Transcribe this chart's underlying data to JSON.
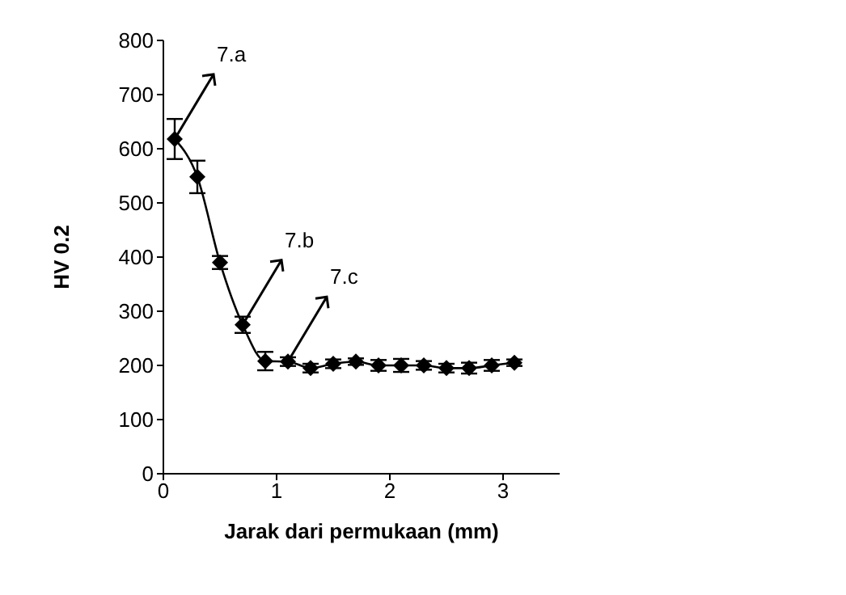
{
  "chart_data": {
    "type": "line",
    "xlabel": "Jarak dari permukaan (mm)",
    "ylabel": "HV 0.2",
    "x": [
      0.1,
      0.3,
      0.5,
      0.7,
      0.9,
      1.1,
      1.3,
      1.5,
      1.7,
      1.9,
      2.1,
      2.3,
      2.5,
      2.7,
      2.9,
      3.1
    ],
    "series": [
      {
        "color": "#000000",
        "values": [
          618,
          548,
          390,
          275,
          208,
          207,
          195,
          203,
          207,
          200,
          200,
          200,
          195,
          195,
          200,
          205
        ],
        "errors": [
          37,
          30,
          12,
          15,
          17,
          8,
          8,
          8,
          6,
          10,
          12,
          8,
          8,
          10,
          10,
          6
        ]
      }
    ],
    "annotations": [
      {
        "text": "7.a",
        "x": 0.1,
        "y": 618
      },
      {
        "text": "7.b",
        "x": 0.7,
        "y": 275
      },
      {
        "text": "7.c",
        "x": 1.1,
        "y": 207
      }
    ],
    "xlim": [
      0,
      3.5
    ],
    "xticks": [
      0,
      1,
      2,
      3
    ],
    "ylim": [
      0,
      800
    ],
    "yticks": [
      0,
      100,
      200,
      300,
      400,
      500,
      600,
      700,
      800
    ],
    "marker": "diamond",
    "line_style": "solid"
  }
}
